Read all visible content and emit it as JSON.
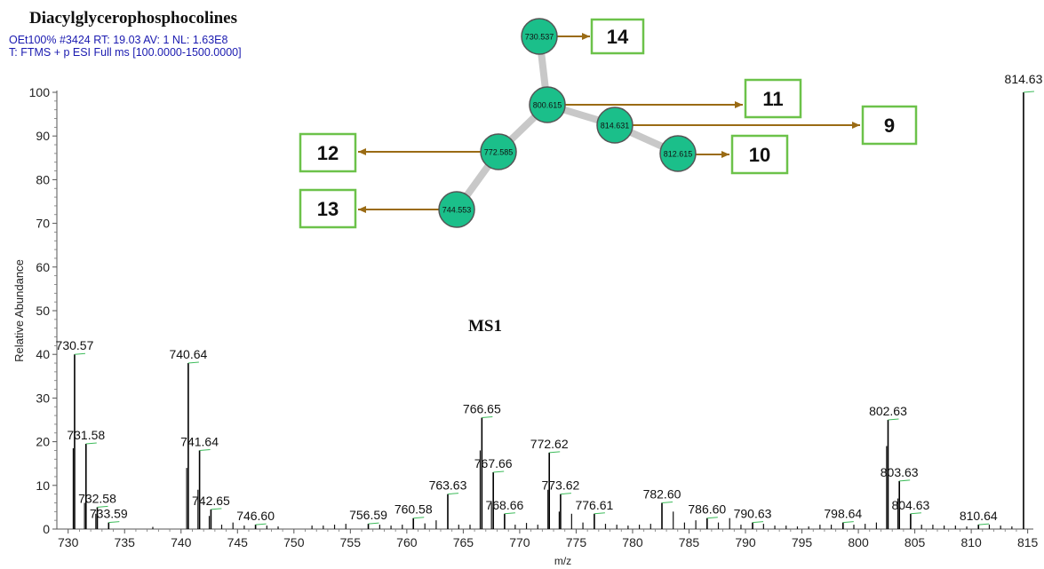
{
  "header": {
    "title": "Diacylglycerophosphocolines",
    "line1": "OEt100% #3424  RT: 19.03  AV: 1  NL: 1.63E8",
    "line2": "T: FTMS + p ESI Full ms [100.0000-1500.0000]"
  },
  "panel_label": "MS1",
  "chart_data": {
    "type": "bar",
    "xlabel": "m/z",
    "ylabel": "Relative Abundance",
    "xlim": [
      729,
      815.5
    ],
    "ylim": [
      0,
      100
    ],
    "x_ticks": [
      730,
      735,
      740,
      745,
      750,
      755,
      760,
      765,
      770,
      775,
      780,
      785,
      790,
      795,
      800,
      805,
      810,
      815
    ],
    "y_ticks": [
      0,
      10,
      20,
      30,
      40,
      50,
      60,
      70,
      80,
      90,
      100
    ],
    "labeled_peaks": [
      {
        "x": 730.57,
        "y": 40,
        "label": "730.57"
      },
      {
        "x": 731.58,
        "y": 19.5,
        "label": "731.58"
      },
      {
        "x": 732.58,
        "y": 5,
        "label": "732.58"
      },
      {
        "x": 733.59,
        "y": 1.5,
        "label": "733.59"
      },
      {
        "x": 740.64,
        "y": 38,
        "label": "740.64"
      },
      {
        "x": 741.64,
        "y": 18,
        "label": "741.64"
      },
      {
        "x": 742.65,
        "y": 4.5,
        "label": "742.65"
      },
      {
        "x": 746.6,
        "y": 1,
        "label": "746.60"
      },
      {
        "x": 756.59,
        "y": 1.2,
        "label": "756.59"
      },
      {
        "x": 760.58,
        "y": 2.5,
        "label": "760.58"
      },
      {
        "x": 763.63,
        "y": 8,
        "label": "763.63"
      },
      {
        "x": 766.65,
        "y": 25.5,
        "label": "766.65"
      },
      {
        "x": 767.66,
        "y": 13,
        "label": "767.66"
      },
      {
        "x": 768.66,
        "y": 3.5,
        "label": "768.66"
      },
      {
        "x": 772.62,
        "y": 17.5,
        "label": "772.62"
      },
      {
        "x": 773.62,
        "y": 8,
        "label": "773.62"
      },
      {
        "x": 776.61,
        "y": 3.5,
        "label": "776.61"
      },
      {
        "x": 782.6,
        "y": 6,
        "label": "782.60"
      },
      {
        "x": 786.6,
        "y": 2.5,
        "label": "786.60"
      },
      {
        "x": 790.63,
        "y": 1.5,
        "label": "790.63"
      },
      {
        "x": 798.64,
        "y": 1.5,
        "label": "798.64"
      },
      {
        "x": 802.63,
        "y": 25,
        "label": "802.63"
      },
      {
        "x": 803.63,
        "y": 11,
        "label": "803.63"
      },
      {
        "x": 804.63,
        "y": 3.5,
        "label": "804.63"
      },
      {
        "x": 810.64,
        "y": 1,
        "label": "810.64"
      },
      {
        "x": 814.63,
        "y": 100,
        "label": "814.63"
      }
    ],
    "minor_peaks": [
      {
        "x": 730.45,
        "y": 18.5
      },
      {
        "x": 731.45,
        "y": 6
      },
      {
        "x": 732.45,
        "y": 3.5
      },
      {
        "x": 737.5,
        "y": 0.5
      },
      {
        "x": 740.5,
        "y": 14
      },
      {
        "x": 741.5,
        "y": 9
      },
      {
        "x": 742.5,
        "y": 3
      },
      {
        "x": 743.6,
        "y": 1
      },
      {
        "x": 744.6,
        "y": 1.5
      },
      {
        "x": 745.6,
        "y": 0.8
      },
      {
        "x": 747.6,
        "y": 0.8
      },
      {
        "x": 748.6,
        "y": 0.6
      },
      {
        "x": 751.6,
        "y": 0.8
      },
      {
        "x": 752.6,
        "y": 0.8
      },
      {
        "x": 753.6,
        "y": 1
      },
      {
        "x": 754.6,
        "y": 1.2
      },
      {
        "x": 757.6,
        "y": 1
      },
      {
        "x": 758.6,
        "y": 0.8
      },
      {
        "x": 759.6,
        "y": 1
      },
      {
        "x": 761.6,
        "y": 1.3
      },
      {
        "x": 762.6,
        "y": 2
      },
      {
        "x": 764.6,
        "y": 1
      },
      {
        "x": 765.6,
        "y": 1
      },
      {
        "x": 766.5,
        "y": 18
      },
      {
        "x": 767.5,
        "y": 6
      },
      {
        "x": 769.6,
        "y": 1
      },
      {
        "x": 770.6,
        "y": 1.4
      },
      {
        "x": 771.6,
        "y": 1
      },
      {
        "x": 772.5,
        "y": 9
      },
      {
        "x": 773.5,
        "y": 4
      },
      {
        "x": 774.6,
        "y": 3.5
      },
      {
        "x": 775.6,
        "y": 1.5
      },
      {
        "x": 777.6,
        "y": 1.2
      },
      {
        "x": 778.6,
        "y": 1
      },
      {
        "x": 779.6,
        "y": 0.8
      },
      {
        "x": 780.6,
        "y": 1
      },
      {
        "x": 781.6,
        "y": 1.2
      },
      {
        "x": 783.6,
        "y": 4
      },
      {
        "x": 784.6,
        "y": 1.5
      },
      {
        "x": 785.6,
        "y": 2
      },
      {
        "x": 787.6,
        "y": 1.5
      },
      {
        "x": 788.6,
        "y": 2.5
      },
      {
        "x": 789.6,
        "y": 1
      },
      {
        "x": 791.6,
        "y": 1.2
      },
      {
        "x": 792.6,
        "y": 0.8
      },
      {
        "x": 793.6,
        "y": 0.8
      },
      {
        "x": 794.6,
        "y": 0.6
      },
      {
        "x": 795.6,
        "y": 0.6
      },
      {
        "x": 796.6,
        "y": 1
      },
      {
        "x": 797.6,
        "y": 1
      },
      {
        "x": 799.6,
        "y": 1
      },
      {
        "x": 800.6,
        "y": 1.2
      },
      {
        "x": 801.6,
        "y": 1.5
      },
      {
        "x": 802.5,
        "y": 19
      },
      {
        "x": 803.5,
        "y": 7
      },
      {
        "x": 805.6,
        "y": 1
      },
      {
        "x": 806.6,
        "y": 1
      },
      {
        "x": 807.6,
        "y": 0.8
      },
      {
        "x": 808.6,
        "y": 0.8
      },
      {
        "x": 809.6,
        "y": 0.6
      },
      {
        "x": 811.6,
        "y": 1
      },
      {
        "x": 812.6,
        "y": 0.8
      },
      {
        "x": 813.6,
        "y": 0.6
      }
    ],
    "network": {
      "nodes": [
        {
          "id": "730.537",
          "label": "730.537",
          "box": "14"
        },
        {
          "id": "800.615",
          "label": "800.615",
          "box": "11"
        },
        {
          "id": "814.631",
          "label": "814.631",
          "box": "9"
        },
        {
          "id": "812.615",
          "label": "812.615",
          "box": "10"
        },
        {
          "id": "772.585",
          "label": "772.585",
          "box": "12"
        },
        {
          "id": "744.553",
          "label": "744.553",
          "box": "13"
        }
      ],
      "edges": [
        [
          "730.537",
          "800.615"
        ],
        [
          "800.615",
          "814.631"
        ],
        [
          "814.631",
          "812.615"
        ],
        [
          "800.615",
          "772.585"
        ],
        [
          "772.585",
          "744.553"
        ]
      ],
      "node_color": "#1bbf8a",
      "edge_color": "#c8c8c8",
      "arrow_color": "#9a6b14",
      "box_border_color": "#6cc24a"
    }
  }
}
